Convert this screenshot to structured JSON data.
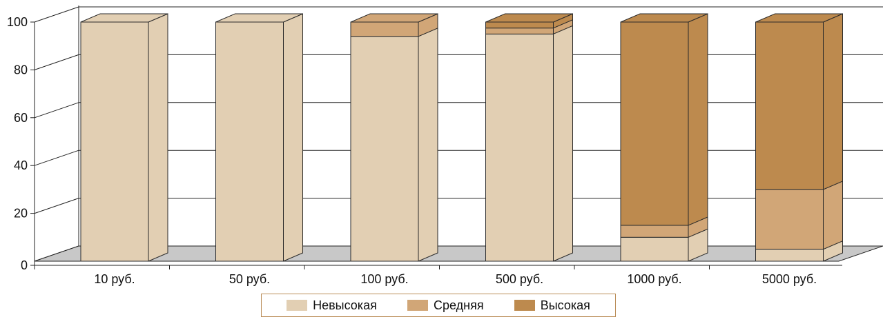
{
  "chart_data": {
    "type": "bar",
    "stacked": true,
    "three_d": true,
    "categories": [
      "10 руб.",
      "50 руб.",
      "100 руб.",
      "500 руб.",
      "1000 руб.",
      "5000 руб."
    ],
    "series": [
      {
        "name": "Невысокая",
        "color": "#e2cfb3",
        "values": [
          100,
          100,
          94,
          95,
          10,
          5
        ]
      },
      {
        "name": "Средняя",
        "color": "#d1a677",
        "values": [
          0,
          0,
          6,
          2.5,
          5,
          25
        ]
      },
      {
        "name": "Высокая",
        "color": "#bd8a4e",
        "values": [
          0,
          0,
          0,
          2.5,
          85,
          70
        ]
      }
    ],
    "yticks": [
      0,
      20,
      40,
      60,
      80,
      100
    ],
    "ylim": [
      0,
      100
    ],
    "grid": true,
    "legend_position": "bottom",
    "title": "",
    "xlabel": "",
    "ylabel": ""
  }
}
